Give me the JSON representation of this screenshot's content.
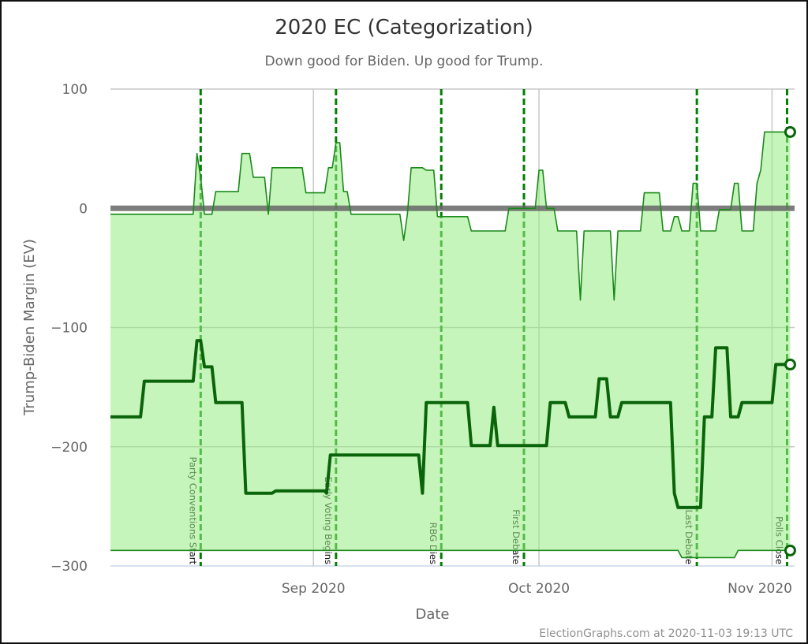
{
  "chart_data": {
    "type": "area",
    "title": "2020 EC (Categorization)",
    "subtitle": "Down good for Biden. Up good for Trump.",
    "xlabel": "Date",
    "ylabel": "Trump-Biden Margin (EV)",
    "credit": "ElectionGraphs.com at 2020-11-03 19:13 UTC",
    "xlim": [
      "2020-08-05",
      "2020-11-04"
    ],
    "ylim": [
      -300,
      100
    ],
    "x_ticks": [
      {
        "date": "2020-09-01",
        "label": "Sep 2020"
      },
      {
        "date": "2020-10-01",
        "label": "Oct 2020"
      },
      {
        "date": "2020-11-01",
        "label": "Nov 2020"
      }
    ],
    "y_ticks": [
      {
        "value": 100,
        "label": "100"
      },
      {
        "value": 0,
        "label": "0"
      },
      {
        "value": -100,
        "label": "−100"
      },
      {
        "value": -200,
        "label": "−200"
      },
      {
        "value": -300,
        "label": "−300"
      }
    ],
    "grid": true,
    "legend": "none",
    "colors": {
      "fill": "#97ed83",
      "upper": "#1a8a1a",
      "middle": "#0a640a",
      "lower": "#1a8a1a",
      "event": "#008000",
      "zero": "#666666"
    },
    "events": [
      {
        "date": "2020-08-17",
        "label": "Party Conventions Start"
      },
      {
        "date": "2020-09-04",
        "label": "Early Voting Begins"
      },
      {
        "date": "2020-09-18",
        "label": "RBG Dies"
      },
      {
        "date": "2020-09-29",
        "label": "First Debate"
      },
      {
        "date": "2020-10-22",
        "label": "Last Debate"
      },
      {
        "date": "2020-11-03",
        "label": "Polls Close"
      }
    ],
    "series": [
      {
        "key": "upper",
        "points": [
          [
            "2020-08-05T00:00",
            -5
          ],
          [
            "2020-08-16T00:00",
            -5
          ],
          [
            "2020-08-16T12:00",
            46
          ],
          [
            "2020-08-17T00:00",
            26
          ],
          [
            "2020-08-17T12:00",
            -5
          ],
          [
            "2020-08-18T12:00",
            -5
          ],
          [
            "2020-08-19T00:00",
            14
          ],
          [
            "2020-08-22T00:00",
            14
          ],
          [
            "2020-08-22T12:00",
            46
          ],
          [
            "2020-08-23T12:00",
            46
          ],
          [
            "2020-08-24T00:00",
            26
          ],
          [
            "2020-08-25T12:00",
            26
          ],
          [
            "2020-08-26T00:00",
            -5
          ],
          [
            "2020-08-26T12:00",
            34
          ],
          [
            "2020-08-30T12:00",
            34
          ],
          [
            "2020-08-31T00:00",
            13
          ],
          [
            "2020-09-02T12:00",
            13
          ],
          [
            "2020-09-03T00:00",
            34
          ],
          [
            "2020-09-03T12:00",
            34
          ],
          [
            "2020-09-04T00:00",
            55
          ],
          [
            "2020-09-04T12:00",
            55
          ],
          [
            "2020-09-05T00:00",
            14
          ],
          [
            "2020-09-05T12:00",
            14
          ],
          [
            "2020-09-06T00:00",
            -5
          ],
          [
            "2020-09-12T12:00",
            -5
          ],
          [
            "2020-09-13T00:00",
            -27
          ],
          [
            "2020-09-13T12:00",
            -5
          ],
          [
            "2020-09-14T00:00",
            34
          ],
          [
            "2020-09-15T12:00",
            34
          ],
          [
            "2020-09-16T00:00",
            32
          ],
          [
            "2020-09-17T00:00",
            32
          ],
          [
            "2020-09-17T12:00",
            -7
          ],
          [
            "2020-09-21T12:00",
            -7
          ],
          [
            "2020-09-22T00:00",
            -19
          ],
          [
            "2020-09-26T12:00",
            -19
          ],
          [
            "2020-09-27T00:00",
            0
          ],
          [
            "2020-09-30T12:00",
            0
          ],
          [
            "2020-10-01T00:00",
            32
          ],
          [
            "2020-10-01T12:00",
            32
          ],
          [
            "2020-10-02T00:00",
            0
          ],
          [
            "2020-10-03T00:00",
            0
          ],
          [
            "2020-10-03T12:00",
            -19
          ],
          [
            "2020-10-06T00:00",
            -19
          ],
          [
            "2020-10-06T12:00",
            -77
          ],
          [
            "2020-10-07T00:00",
            -19
          ],
          [
            "2020-10-10T12:00",
            -19
          ],
          [
            "2020-10-11T00:00",
            -77
          ],
          [
            "2020-10-11T12:00",
            -19
          ],
          [
            "2020-10-14T12:00",
            -19
          ],
          [
            "2020-10-15T00:00",
            13
          ],
          [
            "2020-10-17T00:00",
            13
          ],
          [
            "2020-10-17T12:00",
            -19
          ],
          [
            "2020-10-18T12:00",
            -19
          ],
          [
            "2020-10-19T00:00",
            -7
          ],
          [
            "2020-10-19T12:00",
            -7
          ],
          [
            "2020-10-20T00:00",
            -19
          ],
          [
            "2020-10-21T00:00",
            -19
          ],
          [
            "2020-10-21T12:00",
            21
          ],
          [
            "2020-10-22T00:00",
            21
          ],
          [
            "2020-10-22T12:00",
            -19
          ],
          [
            "2020-10-24T12:00",
            -19
          ],
          [
            "2020-10-25T00:00",
            -1
          ],
          [
            "2020-10-26T12:00",
            -1
          ],
          [
            "2020-10-27T00:00",
            21
          ],
          [
            "2020-10-27T12:00",
            21
          ],
          [
            "2020-10-28T00:00",
            -19
          ],
          [
            "2020-10-29T12:00",
            -19
          ],
          [
            "2020-10-30T00:00",
            21
          ],
          [
            "2020-10-30T12:00",
            32
          ],
          [
            "2020-10-31T00:00",
            64
          ],
          [
            "2020-11-03T10:00",
            64
          ]
        ]
      },
      {
        "key": "middle",
        "points": [
          [
            "2020-08-05T00:00",
            -175
          ],
          [
            "2020-08-09T00:00",
            -175
          ],
          [
            "2020-08-09T12:00",
            -145
          ],
          [
            "2020-08-16T00:00",
            -145
          ],
          [
            "2020-08-16T12:00",
            -111
          ],
          [
            "2020-08-17T00:00",
            -111
          ],
          [
            "2020-08-17T12:00",
            -133
          ],
          [
            "2020-08-18T12:00",
            -133
          ],
          [
            "2020-08-19T00:00",
            -163
          ],
          [
            "2020-08-22T12:00",
            -163
          ],
          [
            "2020-08-23T00:00",
            -239
          ],
          [
            "2020-08-26T12:00",
            -239
          ],
          [
            "2020-08-27T00:00",
            -237
          ],
          [
            "2020-09-02T12:00",
            -237
          ],
          [
            "2020-09-02T18:00",
            -239
          ],
          [
            "2020-09-03T06:00",
            -207
          ],
          [
            "2020-09-15T00:00",
            -207
          ],
          [
            "2020-09-15T12:00",
            -239
          ],
          [
            "2020-09-16T00:00",
            -163
          ],
          [
            "2020-09-21T12:00",
            -163
          ],
          [
            "2020-09-22T00:00",
            -199
          ],
          [
            "2020-09-24T12:00",
            -199
          ],
          [
            "2020-09-25T00:00",
            -167
          ],
          [
            "2020-09-25T12:00",
            -199
          ],
          [
            "2020-10-02T00:00",
            -199
          ],
          [
            "2020-10-02T12:00",
            -163
          ],
          [
            "2020-10-04T12:00",
            -163
          ],
          [
            "2020-10-05T00:00",
            -175
          ],
          [
            "2020-10-08T12:00",
            -175
          ],
          [
            "2020-10-09T00:00",
            -143
          ],
          [
            "2020-10-10T00:00",
            -143
          ],
          [
            "2020-10-10T12:00",
            -175
          ],
          [
            "2020-10-11T12:00",
            -175
          ],
          [
            "2020-10-12T00:00",
            -163
          ],
          [
            "2020-10-18T12:00",
            -163
          ],
          [
            "2020-10-19T00:00",
            -239
          ],
          [
            "2020-10-19T12:00",
            -251
          ],
          [
            "2020-10-22T12:00",
            -251
          ],
          [
            "2020-10-23T00:00",
            -175
          ],
          [
            "2020-10-24T00:00",
            -175
          ],
          [
            "2020-10-24T12:00",
            -117
          ],
          [
            "2020-10-26T00:00",
            -117
          ],
          [
            "2020-10-26T12:00",
            -175
          ],
          [
            "2020-10-27T12:00",
            -175
          ],
          [
            "2020-10-28T00:00",
            -163
          ],
          [
            "2020-11-01T00:00",
            -163
          ],
          [
            "2020-11-01T12:00",
            -131
          ],
          [
            "2020-11-03T10:00",
            -131
          ]
        ]
      },
      {
        "key": "lower",
        "points": [
          [
            "2020-08-05T00:00",
            -287
          ],
          [
            "2020-10-19T12:00",
            -287
          ],
          [
            "2020-10-20T00:00",
            -293
          ],
          [
            "2020-10-27T00:00",
            -293
          ],
          [
            "2020-10-27T12:00",
            -287
          ],
          [
            "2020-11-03T10:00",
            -287
          ]
        ]
      }
    ]
  }
}
